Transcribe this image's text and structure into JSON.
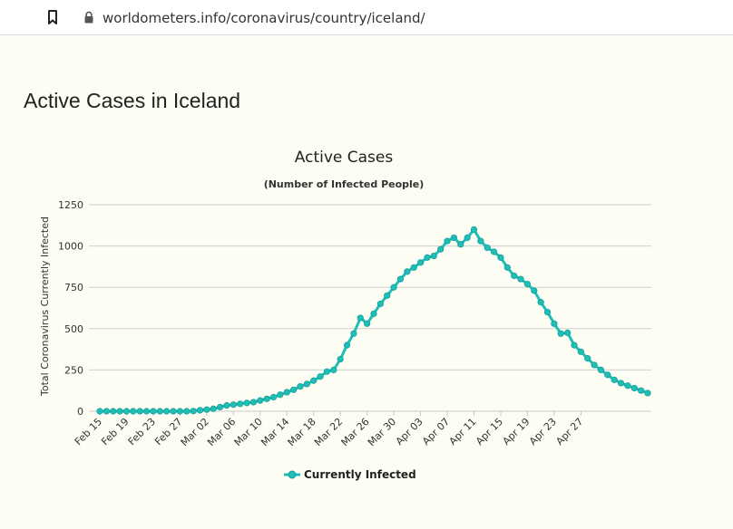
{
  "browser": {
    "url": "worldometers.info/coronavirus/country/iceland/",
    "bookmark_icon": "bookmark-icon",
    "lock_icon": "lock-icon"
  },
  "page": {
    "title": "Active Cases in Iceland"
  },
  "chart_data": {
    "type": "line",
    "title": "Active Cases",
    "subtitle": "(Number of Infected People)",
    "ylabel": "Total Coronavirus Currently Infected",
    "xlabel": "",
    "ylim": [
      0,
      1250
    ],
    "yticks": [
      0,
      250,
      500,
      750,
      1000,
      1250
    ],
    "xtick_labels": [
      "Feb 15",
      "Feb 19",
      "Feb 23",
      "Feb 27",
      "Mar 02",
      "Mar 06",
      "Mar 10",
      "Mar 14",
      "Mar 18",
      "Mar 22",
      "Mar 26",
      "Mar 30",
      "Apr 03",
      "Apr 07",
      "Apr 11",
      "Apr 15",
      "Apr 19",
      "Apr 23",
      "Apr 27"
    ],
    "color": "#1fbfb8",
    "legend": "bottom-center",
    "series": [
      {
        "name": "Currently Infected",
        "values": [
          0,
          0,
          0,
          0,
          0,
          0,
          0,
          0,
          0,
          0,
          0,
          0,
          0,
          0,
          1,
          6,
          10,
          15,
          25,
          35,
          40,
          45,
          50,
          55,
          65,
          75,
          85,
          100,
          115,
          130,
          150,
          165,
          185,
          210,
          240,
          250,
          315,
          400,
          470,
          565,
          530,
          590,
          650,
          700,
          750,
          800,
          845,
          870,
          900,
          930,
          940,
          980,
          1030,
          1050,
          1010,
          1050,
          1100,
          1030,
          990,
          965,
          930,
          870,
          820,
          800,
          770,
          730,
          660,
          600,
          530,
          470,
          475,
          400,
          360,
          320,
          280,
          250,
          220,
          190,
          170,
          155,
          140,
          125,
          110
        ]
      }
    ]
  }
}
